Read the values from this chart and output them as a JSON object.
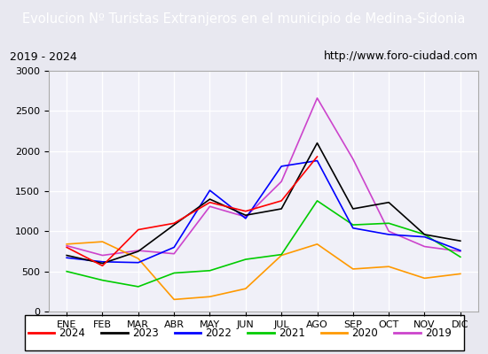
{
  "title": "Evolucion Nº Turistas Extranjeros en el municipio de Medina-Sidonia",
  "title_bg": "#4a90d9",
  "subtitle_left": "2019 - 2024",
  "subtitle_right": "http://www.foro-ciudad.com",
  "months": [
    "ENE",
    "FEB",
    "MAR",
    "ABR",
    "MAY",
    "JUN",
    "JUL",
    "AGO",
    "SEP",
    "OCT",
    "NOV",
    "DIC"
  ],
  "series": {
    "2024": {
      "color": "#ff0000",
      "values": [
        800,
        570,
        1020,
        1100,
        1360,
        1250,
        1380,
        1930,
        null,
        null,
        null,
        null
      ]
    },
    "2023": {
      "color": "#000000",
      "values": [
        700,
        600,
        750,
        1080,
        1400,
        1200,
        1280,
        2100,
        1280,
        1360,
        960,
        880
      ]
    },
    "2022": {
      "color": "#0000ff",
      "values": [
        670,
        620,
        610,
        800,
        1510,
        1160,
        1810,
        1880,
        1040,
        960,
        930,
        760
      ]
    },
    "2021": {
      "color": "#00cc00",
      "values": [
        500,
        390,
        310,
        480,
        510,
        650,
        710,
        1380,
        1080,
        1100,
        960,
        680
      ]
    },
    "2020": {
      "color": "#ff9900",
      "values": [
        840,
        870,
        660,
        150,
        185,
        285,
        700,
        840,
        530,
        560,
        415,
        470
      ]
    },
    "2019": {
      "color": "#cc44cc",
      "values": [
        820,
        700,
        760,
        720,
        1310,
        1180,
        1620,
        2660,
        1900,
        1000,
        810,
        750
      ]
    }
  },
  "ylim": [
    0,
    3000
  ],
  "yticks": [
    0,
    500,
    1000,
    1500,
    2000,
    2500,
    3000
  ],
  "legend_order": [
    "2024",
    "2023",
    "2022",
    "2021",
    "2020",
    "2019"
  ],
  "bg_color": "#e8e8f0",
  "plot_bg": "#f0f0f8",
  "grid_color": "#ffffff",
  "border_color": "#4a90d9"
}
